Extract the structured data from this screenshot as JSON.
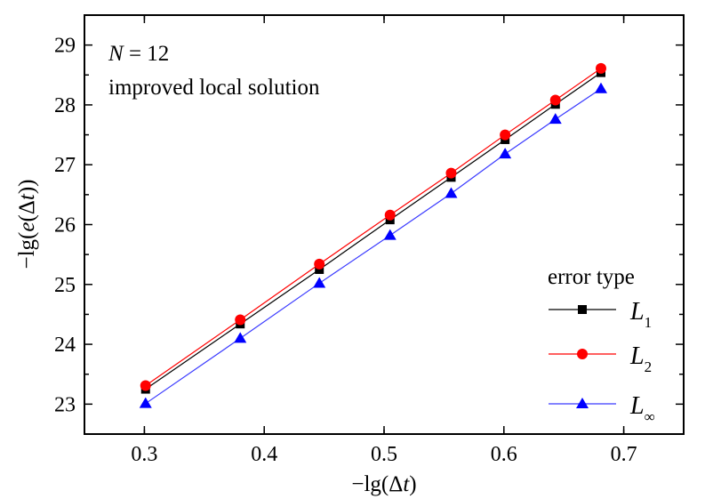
{
  "chart_data": {
    "type": "line",
    "title": "",
    "annotations": [
      "N = 12",
      "improved local solution"
    ],
    "xlabel": "−lg(Δt)",
    "ylabel": "−lg(e(Δt))",
    "xlim": [
      0.25,
      0.75
    ],
    "ylim": [
      22.5,
      29.5
    ],
    "xticks": [
      0.3,
      0.4,
      0.5,
      0.6,
      0.7
    ],
    "xtick_labels": [
      "0.3",
      "0.4",
      "0.5",
      "0.6",
      "0.7"
    ],
    "yticks": [
      23,
      24,
      25,
      26,
      27,
      28,
      29
    ],
    "ytick_labels": [
      "23",
      "24",
      "25",
      "26",
      "27",
      "28",
      "29"
    ],
    "grid": false,
    "legend": {
      "title": "error type",
      "position": "lower right",
      "entries": [
        "L1",
        "L2",
        "L∞"
      ]
    },
    "x": [
      0.301,
      0.38,
      0.446,
      0.505,
      0.556,
      0.601,
      0.643,
      0.681
    ],
    "series": [
      {
        "name": "L1",
        "symbol": "L",
        "subscript": "1",
        "color": "#000000",
        "marker": "square",
        "values": [
          23.25,
          24.34,
          25.25,
          26.08,
          26.79,
          27.42,
          28.01,
          28.54
        ]
      },
      {
        "name": "L2",
        "symbol": "L",
        "subscript": "2",
        "color": "#ff0000",
        "marker": "circle",
        "values": [
          23.31,
          24.41,
          25.34,
          26.16,
          26.86,
          27.5,
          28.08,
          28.61
        ]
      },
      {
        "name": "L∞",
        "symbol": "L",
        "subscript": "∞",
        "color": "#0000ff",
        "marker": "triangle",
        "values": [
          23.01,
          24.1,
          25.02,
          25.82,
          26.52,
          27.18,
          27.76,
          28.27
        ]
      }
    ]
  }
}
